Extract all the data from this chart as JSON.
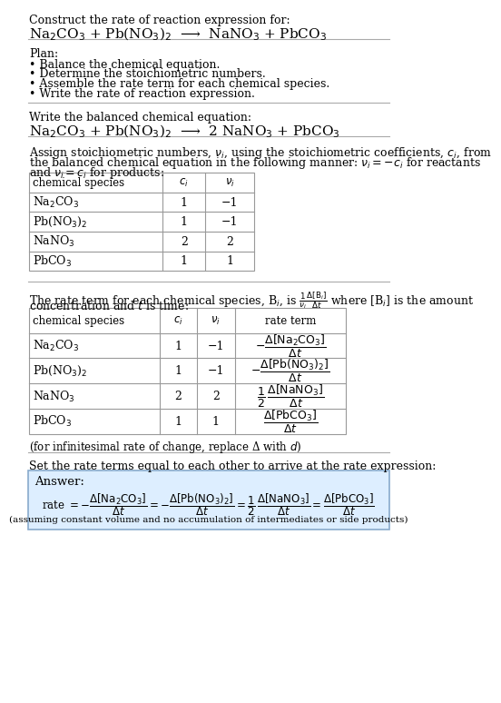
{
  "title_line1": "Construct the rate of reaction expression for:",
  "title_line2": "Na$_2$CO$_3$ + Pb(NO$_3$)$_2$  ⟶  NaNO$_3$ + PbCO$_3$",
  "plan_header": "Plan:",
  "plan_items": [
    "• Balance the chemical equation.",
    "• Determine the stoichiometric numbers.",
    "• Assemble the rate term for each chemical species.",
    "• Write the rate of reaction expression."
  ],
  "balanced_header": "Write the balanced chemical equation:",
  "balanced_eq": "Na$_2$CO$_3$ + Pb(NO$_3$)$_2$  ⟶  2 NaNO$_3$ + PbCO$_3$",
  "stoich_intro1": "Assign stoichiometric numbers, $\\nu_i$, using the stoichiometric coefficients, $c_i$, from",
  "stoich_intro2": "the balanced chemical equation in the following manner: $\\nu_i = -c_i$ for reactants",
  "stoich_intro3": "and $\\nu_i = c_i$ for products:",
  "table1_headers": [
    "chemical species",
    "$c_i$",
    "$\\nu_i$"
  ],
  "table1_rows": [
    [
      "Na$_2$CO$_3$",
      "1",
      "−1"
    ],
    [
      "Pb(NO$_3$)$_2$",
      "1",
      "−1"
    ],
    [
      "NaNO$_3$",
      "2",
      "2"
    ],
    [
      "PbCO$_3$",
      "1",
      "1"
    ]
  ],
  "rate_intro1": "The rate term for each chemical species, B$_i$, is $\\frac{1}{\\nu_i}\\frac{\\Delta[\\mathrm{B}_i]}{\\Delta t}$ where [B$_i$] is the amount",
  "rate_intro2": "concentration and $t$ is time:",
  "table2_headers": [
    "chemical species",
    "$c_i$",
    "$\\nu_i$",
    "rate term"
  ],
  "table2_rows": [
    [
      "Na$_2$CO$_3$",
      "1",
      "−1",
      "$-\\dfrac{\\Delta[\\mathrm{Na_2CO_3}]}{\\Delta t}$"
    ],
    [
      "Pb(NO$_3$)$_2$",
      "1",
      "−1",
      "$-\\dfrac{\\Delta[\\mathrm{Pb(NO_3)_2}]}{\\Delta t}$"
    ],
    [
      "NaNO$_3$",
      "2",
      "2",
      "$\\dfrac{1}{2}\\,\\dfrac{\\Delta[\\mathrm{NaNO_3}]}{\\Delta t}$"
    ],
    [
      "PbCO$_3$",
      "1",
      "1",
      "$\\dfrac{\\Delta[\\mathrm{PbCO_3}]}{\\Delta t}$"
    ]
  ],
  "infinitesimal_note": "(for infinitesimal rate of change, replace Δ with $d$)",
  "final_header": "Set the rate terms equal to each other to arrive at the rate expression:",
  "answer_box_color": "#ddeeff",
  "answer_label": "Answer:",
  "rate_expression": "rate $= -\\dfrac{\\Delta[\\mathrm{Na_2CO_3}]}{\\Delta t} = -\\dfrac{\\Delta[\\mathrm{Pb(NO_3)_2}]}{\\Delta t} = \\dfrac{1}{2}\\,\\dfrac{\\Delta[\\mathrm{NaNO_3}]}{\\Delta t} = \\dfrac{\\Delta[\\mathrm{PbCO_3}]}{\\Delta t}$",
  "assumption_note": "(assuming constant volume and no accumulation of intermediates or side products)",
  "bg_color": "#ffffff",
  "text_color": "#000000",
  "table_border_color": "#999999",
  "divider_color": "#aaaaaa"
}
